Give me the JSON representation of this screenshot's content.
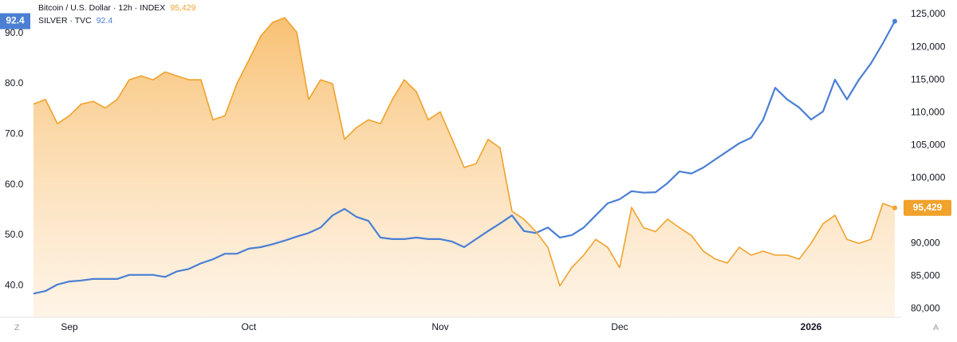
{
  "chart_data": {
    "type": "line",
    "categories": [
      null,
      null,
      null,
      "Sep",
      null,
      null,
      null,
      null,
      null,
      null,
      null,
      null,
      null,
      null,
      null,
      null,
      null,
      null,
      "Oct",
      null,
      null,
      null,
      null,
      null,
      null,
      null,
      null,
      null,
      null,
      null,
      null,
      null,
      null,
      null,
      "Nov",
      null,
      null,
      null,
      null,
      null,
      null,
      null,
      null,
      null,
      null,
      null,
      null,
      null,
      null,
      "Dec",
      null,
      null,
      null,
      null,
      null,
      null,
      null,
      null,
      null,
      null,
      null,
      null,
      null,
      null,
      null,
      "2026",
      null,
      null,
      null,
      null,
      null,
      null,
      null
    ],
    "series": [
      {
        "name": "Bitcoin / U.S. Dollar · 12h · INDEX",
        "color": "#f0a22b",
        "area": true,
        "values": [
          111300,
          112000,
          108300,
          109500,
          111300,
          111700,
          110700,
          112000,
          115000,
          115600,
          115000,
          116200,
          115600,
          115000,
          115000,
          108900,
          109500,
          114400,
          118000,
          121700,
          123800,
          124500,
          122300,
          112000,
          115000,
          114400,
          105900,
          107700,
          108900,
          108300,
          112000,
          115000,
          113200,
          108900,
          110100,
          105900,
          101600,
          102200,
          105900,
          104600,
          94900,
          93700,
          91800,
          89400,
          83500,
          86300,
          88200,
          90600,
          89400,
          86300,
          95500,
          92400,
          91800,
          93700,
          92400,
          91200,
          88800,
          87600,
          87000,
          89400,
          88200,
          88800,
          88200,
          88200,
          87600,
          90000,
          93000,
          94300,
          90600,
          90000,
          90600,
          96100,
          95429
        ],
        "value_labels": [
          null,
          null,
          null,
          null,
          null,
          null,
          null,
          null,
          null,
          null,
          null,
          null,
          null,
          null,
          null,
          null,
          null,
          null,
          null,
          null,
          null,
          null,
          null,
          null,
          null,
          null,
          null,
          null,
          null,
          null,
          null,
          null,
          null,
          null,
          null,
          null,
          null,
          null,
          null,
          null,
          null,
          null,
          null,
          null,
          null,
          null,
          null,
          null,
          null,
          null,
          null,
          null,
          null,
          null,
          null,
          null,
          null,
          null,
          null,
          null,
          null,
          null,
          null,
          null,
          null,
          null,
          null,
          null,
          null,
          null,
          null,
          null,
          "95,429"
        ]
      },
      {
        "name": "SILVER · TVC",
        "color": "#4a7fd4",
        "axis": "y2",
        "values": [
          38.4,
          38.9,
          40.2,
          40.8,
          41.0,
          41.3,
          41.3,
          41.3,
          42.1,
          42.1,
          42.1,
          41.7,
          42.8,
          43.3,
          44.4,
          45.2,
          46.3,
          46.3,
          47.3,
          47.6,
          48.2,
          48.9,
          49.7,
          50.4,
          51.5,
          53.9,
          55.2,
          53.6,
          52.8,
          49.5,
          49.2,
          49.2,
          49.5,
          49.2,
          49.2,
          48.7,
          47.6,
          49.2,
          50.8,
          52.3,
          53.9,
          50.8,
          50.4,
          51.5,
          49.5,
          50.0,
          51.5,
          53.9,
          56.3,
          57.1,
          58.7,
          58.4,
          58.5,
          60.3,
          62.6,
          62.2,
          63.4,
          65.0,
          66.6,
          68.2,
          69.3,
          72.9,
          79.2,
          76.9,
          75.3,
          72.9,
          74.5,
          80.8,
          76.9,
          80.8,
          84.0,
          88.0,
          92.4
        ]
      }
    ],
    "ylim": [
      78700,
      127200
    ],
    "yticks": [
      {
        "value": 80000,
        "label": "80,000"
      },
      {
        "value": 85000,
        "label": "85,000"
      },
      {
        "value": 90000,
        "label": "90,000"
      },
      {
        "value": 95000,
        "label": "95,000"
      },
      {
        "value": 100000,
        "label": "100,000"
      },
      {
        "value": 105000,
        "label": "105,000"
      },
      {
        "value": 110000,
        "label": "110,000"
      },
      {
        "value": 115000,
        "label": "115,000"
      },
      {
        "value": 120000,
        "label": "120,000"
      },
      {
        "value": 125000,
        "label": "125,000"
      }
    ],
    "y2lim": [
      33.7,
      96.6
    ],
    "y2ticks": [
      {
        "value": 40,
        "label": "40.0"
      },
      {
        "value": 50,
        "label": "50.0"
      },
      {
        "value": 60,
        "label": "60.0"
      },
      {
        "value": 70,
        "label": "70.0"
      },
      {
        "value": 80,
        "label": "80.0"
      },
      {
        "value": 90,
        "label": "90.0"
      }
    ],
    "grid": false
  },
  "ui": {
    "left_button": "Z",
    "right_button": "A"
  }
}
